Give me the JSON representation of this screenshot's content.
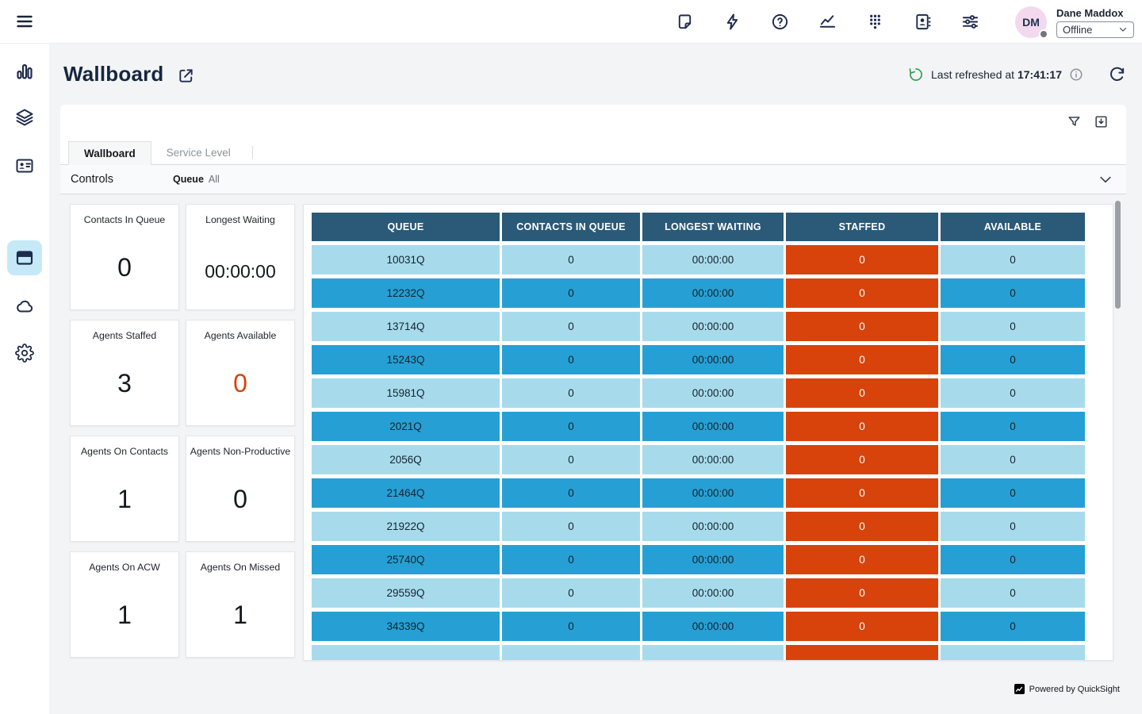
{
  "topbar": {
    "user": {
      "initials": "DM",
      "name": "Dane Maddox",
      "status": "Offline"
    }
  },
  "page": {
    "title": "Wallboard"
  },
  "refresh": {
    "prefix": "Last refreshed at",
    "time": "17:41:17"
  },
  "tabs": {
    "wallboard": "Wallboard",
    "service_level": "Service Level"
  },
  "controls": {
    "title": "Controls",
    "queue_label": "Queue",
    "queue_value": "All"
  },
  "kpis": [
    {
      "label": "Contacts In Queue",
      "value": "0",
      "accent": false,
      "time": false
    },
    {
      "label": "Longest Waiting",
      "value": "00:00:00",
      "accent": false,
      "time": true
    },
    {
      "label": "Agents Staffed",
      "value": "3",
      "accent": false,
      "time": false
    },
    {
      "label": "Agents Available",
      "value": "0",
      "accent": true,
      "time": false
    },
    {
      "label": "Agents On Contacts",
      "value": "1",
      "accent": false,
      "time": false
    },
    {
      "label": "Agents Non-Productive",
      "value": "0",
      "accent": false,
      "time": false
    },
    {
      "label": "Agents On ACW",
      "value": "1",
      "accent": false,
      "time": false
    },
    {
      "label": "Agents On Missed",
      "value": "1",
      "accent": false,
      "time": false
    }
  ],
  "table": {
    "columns": [
      "QUEUE",
      "CONTACTS IN QUEUE",
      "LONGEST WAITING",
      "STAFFED",
      "AVAILABLE"
    ],
    "rows": [
      [
        "10031Q",
        "0",
        "00:00:00",
        "0",
        "0"
      ],
      [
        "12232Q",
        "0",
        "00:00:00",
        "0",
        "0"
      ],
      [
        "13714Q",
        "0",
        "00:00:00",
        "0",
        "0"
      ],
      [
        "15243Q",
        "0",
        "00:00:00",
        "0",
        "0"
      ],
      [
        "15981Q",
        "0",
        "00:00:00",
        "0",
        "0"
      ],
      [
        "2021Q",
        "0",
        "00:00:00",
        "0",
        "0"
      ],
      [
        "2056Q",
        "0",
        "00:00:00",
        "0",
        "0"
      ],
      [
        "21464Q",
        "0",
        "00:00:00",
        "0",
        "0"
      ],
      [
        "21922Q",
        "0",
        "00:00:00",
        "0",
        "0"
      ],
      [
        "25740Q",
        "0",
        "00:00:00",
        "0",
        "0"
      ],
      [
        "29559Q",
        "0",
        "00:00:00",
        "0",
        "0"
      ],
      [
        "34339Q",
        "0",
        "00:00:00",
        "0",
        "0"
      ]
    ],
    "partial_row": [
      "",
      "",
      "",
      "",
      ""
    ]
  },
  "colors": {
    "header_bg": "#2a5a78",
    "row_light": "#a7dbec",
    "row_dark": "#26a0d4",
    "staffed_bg": "#d8430b",
    "kpi_alert": "#d6430c"
  },
  "footer": {
    "powered_by": "Powered by QuickSight"
  }
}
